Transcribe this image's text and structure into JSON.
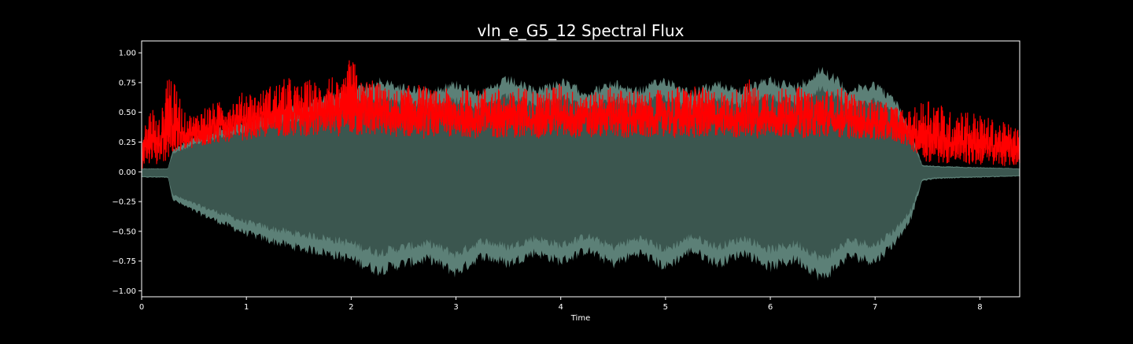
{
  "chart_data": {
    "type": "line",
    "title": "vln_e_G5_12 Spectral Flux",
    "xlabel": "Time",
    "ylabel": "",
    "xlim": [
      0,
      8.38
    ],
    "ylim": [
      -1.05,
      1.1
    ],
    "x_ticks": [
      0,
      1,
      2,
      3,
      4,
      5,
      6,
      7,
      8
    ],
    "x_tick_labels": [
      "0",
      "1",
      "2",
      "3",
      "4",
      "5",
      "6",
      "7",
      "8"
    ],
    "y_ticks": [
      -1.0,
      -0.75,
      -0.5,
      -0.25,
      0.0,
      0.25,
      0.5,
      0.75,
      1.0
    ],
    "y_tick_labels": [
      "−1.00",
      "−0.75",
      "−0.50",
      "−0.25",
      "0.00",
      "0.25",
      "0.50",
      "0.75",
      "1.00"
    ],
    "grid": false,
    "legend": "none",
    "background_color": "#000000",
    "series": [
      {
        "kind": "waveform-envelope",
        "color": "#3b564f",
        "edge_color": "#5c8077",
        "x": [
          0,
          0.25,
          0.3,
          0.5,
          0.75,
          1.0,
          1.25,
          1.5,
          1.75,
          2.0,
          2.25,
          2.5,
          2.75,
          3.0,
          3.25,
          3.5,
          3.75,
          4.0,
          4.25,
          4.5,
          4.75,
          5.0,
          5.25,
          5.5,
          5.75,
          6.0,
          6.25,
          6.5,
          6.75,
          7.0,
          7.2,
          7.35,
          7.45,
          7.6,
          8.0,
          8.38
        ],
        "upper": [
          0.03,
          0.03,
          0.2,
          0.3,
          0.38,
          0.45,
          0.52,
          0.58,
          0.65,
          0.72,
          0.8,
          0.75,
          0.72,
          0.78,
          0.7,
          0.82,
          0.72,
          0.8,
          0.7,
          0.78,
          0.72,
          0.82,
          0.7,
          0.78,
          0.72,
          0.82,
          0.75,
          0.92,
          0.72,
          0.78,
          0.62,
          0.35,
          0.06,
          0.05,
          0.04,
          0.03
        ],
        "lower": [
          -0.05,
          -0.05,
          -0.25,
          -0.35,
          -0.45,
          -0.55,
          -0.62,
          -0.68,
          -0.72,
          -0.78,
          -0.88,
          -0.82,
          -0.78,
          -0.9,
          -0.75,
          -0.82,
          -0.72,
          -0.8,
          -0.7,
          -0.82,
          -0.72,
          -0.85,
          -0.7,
          -0.82,
          -0.72,
          -0.85,
          -0.78,
          -0.95,
          -0.75,
          -0.8,
          -0.62,
          -0.4,
          -0.08,
          -0.06,
          -0.05,
          -0.04
        ]
      },
      {
        "kind": "spectral-flux",
        "color": "#ff0000",
        "x": [
          0.0,
          0.05,
          0.1,
          0.15,
          0.2,
          0.25,
          0.3,
          0.35,
          0.4,
          0.5,
          0.6,
          0.7,
          0.8,
          0.9,
          1.0,
          1.1,
          1.2,
          1.3,
          1.4,
          1.5,
          1.6,
          1.7,
          1.8,
          1.9,
          2.0,
          2.1,
          2.2,
          2.3,
          2.4,
          2.5,
          2.6,
          2.7,
          2.8,
          2.9,
          3.0,
          3.1,
          3.2,
          3.3,
          3.4,
          3.5,
          3.6,
          3.7,
          3.8,
          3.9,
          4.0,
          4.1,
          4.2,
          4.3,
          4.4,
          4.5,
          4.6,
          4.7,
          4.8,
          4.9,
          5.0,
          5.1,
          5.2,
          5.3,
          5.4,
          5.5,
          5.6,
          5.7,
          5.8,
          5.9,
          6.0,
          6.1,
          6.2,
          6.3,
          6.4,
          6.5,
          6.6,
          6.7,
          6.8,
          6.9,
          7.0,
          7.1,
          7.2,
          7.3,
          7.4,
          7.5,
          7.6,
          7.7,
          7.8,
          7.9,
          8.0,
          8.1,
          8.2,
          8.3,
          8.38
        ],
        "upper": [
          0.3,
          0.45,
          0.6,
          0.4,
          0.55,
          0.97,
          0.75,
          0.7,
          0.5,
          0.48,
          0.55,
          0.58,
          0.6,
          0.62,
          0.7,
          0.65,
          0.72,
          0.75,
          0.8,
          0.72,
          0.78,
          0.75,
          0.85,
          0.7,
          1.0,
          0.75,
          0.8,
          0.72,
          0.68,
          0.7,
          0.75,
          0.72,
          0.68,
          0.7,
          0.65,
          0.7,
          0.68,
          0.72,
          0.7,
          0.65,
          0.72,
          0.7,
          0.68,
          0.72,
          0.75,
          0.68,
          0.7,
          0.65,
          0.7,
          0.72,
          0.68,
          0.7,
          0.65,
          0.68,
          0.7,
          0.72,
          0.7,
          0.75,
          0.68,
          0.7,
          0.65,
          0.72,
          0.78,
          0.68,
          0.72,
          0.7,
          0.75,
          0.7,
          0.65,
          0.7,
          0.68,
          0.72,
          0.65,
          0.6,
          0.62,
          0.58,
          0.55,
          0.5,
          0.55,
          0.65,
          0.6,
          0.5,
          0.55,
          0.52,
          0.48,
          0.45,
          0.42,
          0.4,
          0.35
        ],
        "lower": [
          0.02,
          0.05,
          0.08,
          0.05,
          0.08,
          0.1,
          0.12,
          0.15,
          0.18,
          0.2,
          0.22,
          0.24,
          0.25,
          0.26,
          0.27,
          0.28,
          0.29,
          0.3,
          0.3,
          0.3,
          0.3,
          0.3,
          0.3,
          0.3,
          0.3,
          0.3,
          0.3,
          0.3,
          0.3,
          0.28,
          0.3,
          0.28,
          0.3,
          0.3,
          0.28,
          0.3,
          0.28,
          0.3,
          0.28,
          0.3,
          0.28,
          0.3,
          0.28,
          0.3,
          0.3,
          0.28,
          0.3,
          0.28,
          0.3,
          0.3,
          0.28,
          0.3,
          0.28,
          0.3,
          0.3,
          0.28,
          0.3,
          0.28,
          0.3,
          0.28,
          0.3,
          0.28,
          0.3,
          0.28,
          0.3,
          0.28,
          0.3,
          0.28,
          0.3,
          0.28,
          0.3,
          0.28,
          0.28,
          0.28,
          0.26,
          0.26,
          0.25,
          0.22,
          0.15,
          0.08,
          0.08,
          0.07,
          0.07,
          0.06,
          0.06,
          0.06,
          0.05,
          0.05,
          0.05
        ]
      }
    ]
  }
}
